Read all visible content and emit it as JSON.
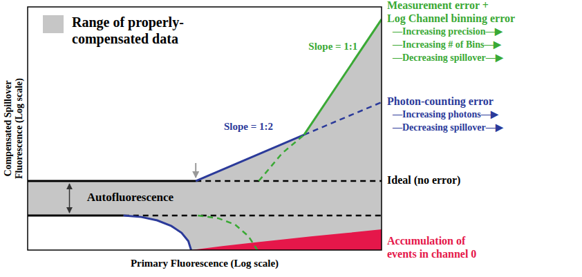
{
  "chart_data": {
    "type": "line",
    "xlabel": "Primary Fluorescence (Log scale)",
    "ylabel": [
      "Compensated Spillover",
      "Fluorescence (Log scale)"
    ],
    "xlim": [
      0,
      100
    ],
    "ylim": [
      0,
      100
    ],
    "tick_labels": false,
    "legend": "upper left",
    "series": [
      {
        "type": "area",
        "name": "Range of properly-compensated data",
        "color": "#c6c6c6",
        "x": [
          0,
          27.1,
          32.1,
          36.6,
          40.6,
          43.5,
          45.4,
          46.2,
          47.5,
          78.1,
          100
        ],
        "values": [
          [
            14.2,
            28.4
          ],
          [
            14.2,
            28.4
          ],
          [
            13.6,
            28.4
          ],
          [
            12.2,
            28.4
          ],
          [
            9.9,
            28.4
          ],
          [
            7.1,
            28.4
          ],
          [
            3.7,
            28.4
          ],
          [
            0,
            28.4
          ],
          [
            0,
            28.4
          ],
          [
            0,
            47.4
          ],
          [
            0,
            94.9
          ]
        ]
      },
      {
        "type": "area",
        "color": "#e5174a",
        "x": [
          46.2,
          55,
          65,
          71,
          80,
          90,
          100
        ],
        "values": [
          0,
          1.6,
          3.3,
          4.2,
          5.6,
          7,
          8.5
        ],
        "label": [
          "Accumulation of",
          "events in channel 0"
        ]
      },
      {
        "color": "#000000",
        "line_style": "solid",
        "x": [
          0,
          47.5
        ],
        "values": [
          28.4,
          28.4
        ]
      },
      {
        "color": "#000000",
        "line_style": "dashed",
        "x": [
          47.5,
          100
        ],
        "values": [
          28.4,
          28.4
        ],
        "label": [
          "Ideal (no error)"
        ]
      },
      {
        "color": "#000000",
        "line_style": "solid",
        "x": [
          0,
          27.1
        ],
        "values": [
          14.2,
          14.2
        ]
      },
      {
        "color": "#000000",
        "line_style": "dashed",
        "x": [
          27.1,
          100
        ],
        "values": [
          14.2,
          14.2
        ]
      },
      {
        "color": "#2b3a9a",
        "line_style": "solid",
        "x": [
          27.1,
          32.1,
          36.6,
          40.6,
          43.5,
          45.4,
          46.2
        ],
        "values": [
          14.2,
          13.6,
          12.2,
          9.9,
          7.1,
          3.7,
          0
        ]
      },
      {
        "color": "#2b3a9a",
        "line_style": "solid",
        "x": [
          47.5,
          78.1
        ],
        "values": [
          28.4,
          47.4
        ]
      },
      {
        "color": "#2b3a9a",
        "line_style": "dashed",
        "x": [
          78.1,
          100
        ],
        "values": [
          47.4,
          60.8
        ],
        "label": [
          "Photon-counting error",
          "—Increasing photons—▶",
          "—Decreasing spillover—▶"
        ]
      },
      {
        "color": "#3aa935",
        "line_style": "solid",
        "x": [
          78.1,
          100
        ],
        "values": [
          47.4,
          94.9
        ],
        "label": [
          "Measurement error +",
          "Log Channel binning error",
          "—Increasing precision—▶",
          "—Increasing # of Bins—▶",
          "—Decreasing spillover—▶"
        ]
      },
      {
        "color": "#3aa935",
        "line_style": "dashed",
        "x": [
          65.3,
          68.1,
          71.9,
          78.1
        ],
        "values": [
          28.4,
          33.2,
          39.8,
          47.4
        ]
      },
      {
        "color": "#3aa935",
        "line_style": "dashed",
        "x": [
          48.1,
          53.8,
          58.6,
          62.4,
          64.9
        ],
        "values": [
          14.2,
          13.1,
          10.5,
          5.7,
          0
        ]
      }
    ],
    "annotations": [
      {
        "text": "Slope = 1:1",
        "x": 86.3,
        "y": 83.5,
        "color": "#3aa935"
      },
      {
        "text": "Slope = 1:2",
        "x": 62.4,
        "y": 50.3,
        "color": "#2b3a9a"
      },
      {
        "text": "Autofluorescence",
        "x": 29,
        "y": 21.3,
        "color": "#000000"
      }
    ]
  }
}
